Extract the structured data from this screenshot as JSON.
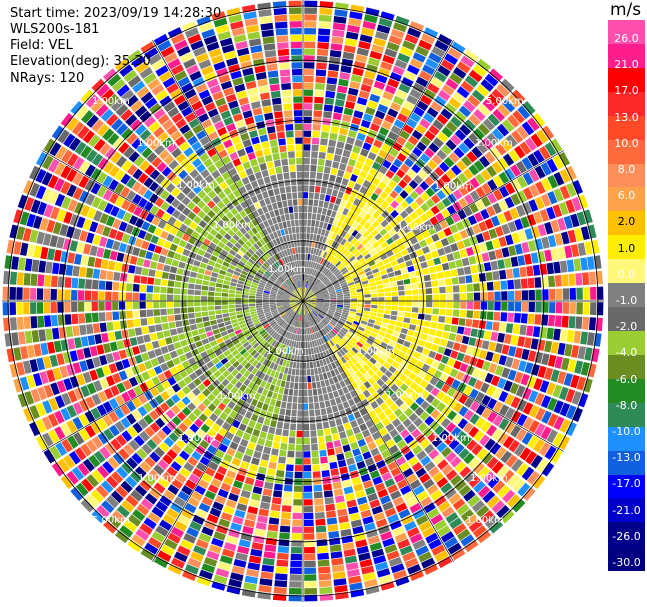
{
  "info": {
    "start_time": "Start time: 2023/09/19 14:28:30",
    "site": "WLS200s-181",
    "field": "Field: VEL",
    "elevation": "Elevation(deg): 35.30",
    "nrays": "NRays: 120"
  },
  "chart_data": {
    "type": "heatmap",
    "projection": "polar-ppi",
    "field": "VEL",
    "units": "m/s",
    "n_rays": 120,
    "elevation_deg": 35.3,
    "range_ring_labels": [
      "1.00km",
      "1.00km",
      "1.00km",
      "1.00km",
      "1.00km",
      "1.00km",
      "1.00km",
      "1.00km",
      "1.00km",
      "1.00km",
      "1.00km",
      "1.00km",
      "1.00km",
      "1.00km",
      "1.00km",
      "1.00km",
      "5.00km",
      "5.00km",
      "1.00km",
      "1.00km"
    ],
    "colorbar": {
      "title": "m/s",
      "tick_labels": [
        "26.0",
        "21.0",
        "17.0",
        "13.0",
        "10.0",
        "8.0",
        "6.0",
        "2.0",
        "1.0",
        "0.0",
        "-1.0",
        "-2.0",
        "-4.0",
        "-6.0",
        "-8.0",
        "-10.0",
        "-13.0",
        "-17.0",
        "-21.0",
        "-26.0",
        "-30.0"
      ],
      "colors": [
        "#ff4fae",
        "#ff1c8c",
        "#ff0000",
        "#ff2828",
        "#ff4a28",
        "#ff6b3c",
        "#ff8f5a",
        "#ffa24a",
        "#ffc000",
        "#ffee00",
        "#fff87a",
        "#808080",
        "#696969",
        "#9acd32",
        "#6b8e23",
        "#228b22",
        "#2e8b57",
        "#1e90ff",
        "#1060e0",
        "#0000ff",
        "#0000cd",
        "#00008b",
        "#000080"
      ]
    },
    "pattern": "inner ~1.5 km: gray (0 to ±1 m/s), green (-2 to -4 m/s) to the west/southwest, yellow (+1 to +2 m/s) to the east; beyond: noisy full-range velocities"
  }
}
